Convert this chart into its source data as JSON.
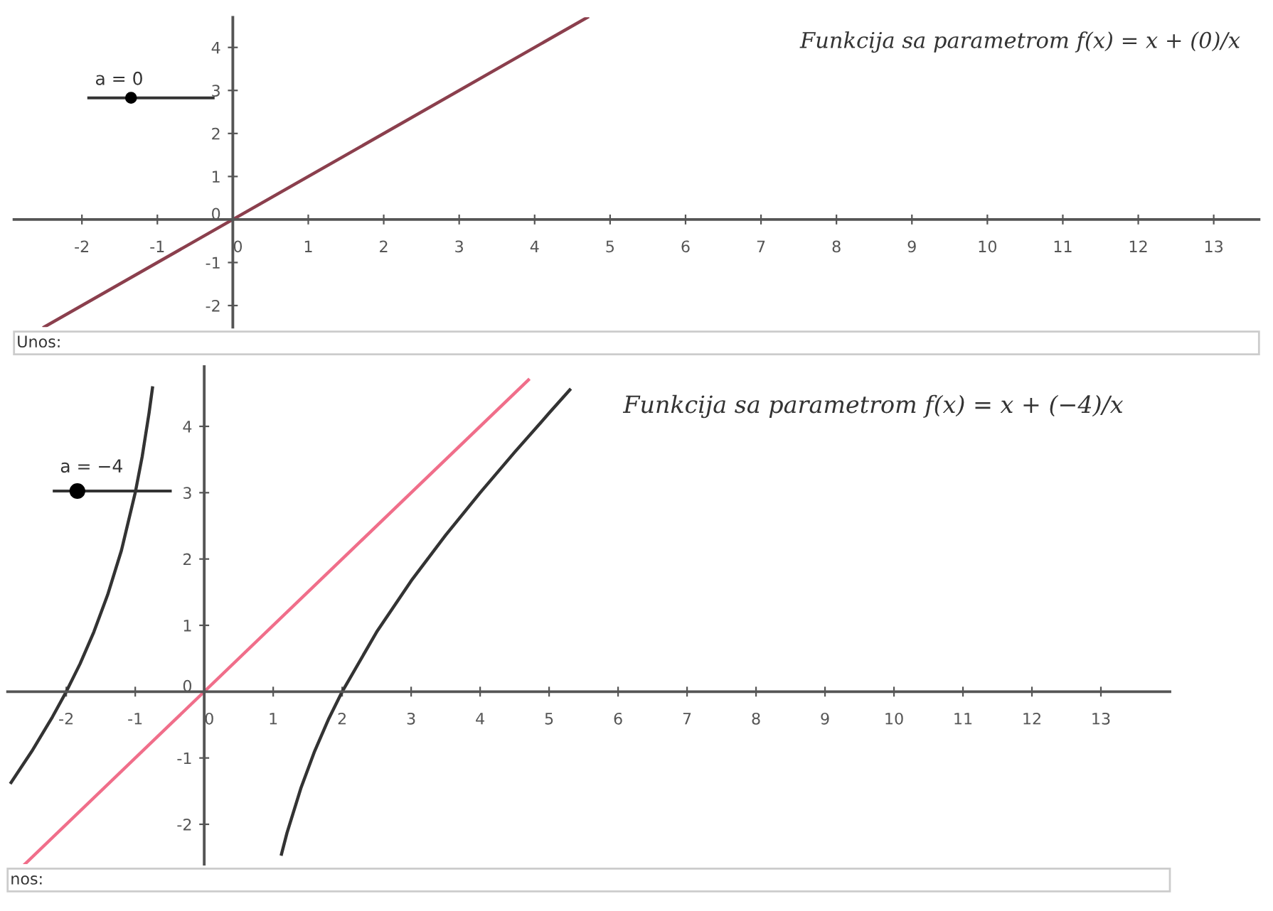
{
  "chart_data": [
    {
      "type": "line",
      "title": "Funkcija sa parametrom f(x) = x + (0)/x",
      "annotations": [
        "a = 0",
        "Unos:"
      ],
      "xlim": [
        -2.9,
        13.6
      ],
      "ylim": [
        -2.5,
        4.7
      ],
      "xticks": [
        -2,
        -1,
        0,
        1,
        2,
        3,
        4,
        5,
        6,
        7,
        8,
        9,
        10,
        11,
        12,
        13
      ],
      "yticks": [
        -2,
        -1,
        0,
        1,
        2,
        3,
        4
      ],
      "grid": false,
      "legend": false,
      "marker": "none",
      "line_style": "solid",
      "series": [
        {
          "color": "#8b3f4d",
          "x": [
            -2.5,
            4.7
          ],
          "values": [
            -2.5,
            4.7
          ]
        }
      ]
    },
    {
      "type": "line",
      "title": "Funkcija sa parametrom f(x) = x + (−4)/x",
      "annotations": [
        "a = −4",
        "nos:"
      ],
      "xlim": [
        -2.85,
        14.0
      ],
      "ylim": [
        -2.6,
        4.9
      ],
      "xticks": [
        -2,
        -1,
        0,
        1,
        2,
        3,
        4,
        5,
        6,
        7,
        8,
        9,
        10,
        11,
        12,
        13
      ],
      "yticks": [
        -2,
        -1,
        0,
        1,
        2,
        3,
        4
      ],
      "grid": false,
      "legend": false,
      "marker": "none",
      "line_style": "solid",
      "series": [
        {
          "color": "#f06e8a",
          "x": [
            -2.6,
            4.7
          ],
          "values": [
            -2.6,
            4.7
          ]
        },
        {
          "color": "#333333",
          "x": [
            -2.8,
            -2.5,
            -2.2,
            -2.0,
            -1.8,
            -1.6,
            -1.4,
            -1.2,
            -1.0,
            -0.9,
            -0.8,
            -0.75
          ],
          "values": [
            -1.37,
            -0.9,
            -0.38,
            0,
            0.42,
            0.9,
            1.46,
            2.13,
            3.0,
            3.54,
            4.2,
            4.58
          ]
        },
        {
          "color": "#333333",
          "x": [
            1.12,
            1.2,
            1.4,
            1.6,
            1.8,
            2.0,
            2.5,
            3.0,
            3.5,
            4.0,
            4.5,
            5.0,
            5.3
          ],
          "values": [
            -2.45,
            -2.13,
            -1.46,
            -0.9,
            -0.42,
            0,
            0.9,
            1.67,
            2.36,
            3.0,
            3.61,
            4.2,
            4.55
          ]
        }
      ]
    }
  ]
}
